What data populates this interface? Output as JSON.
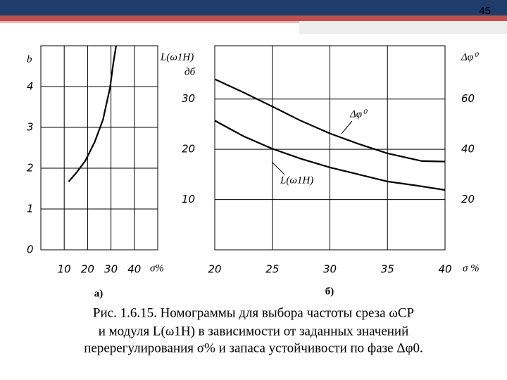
{
  "slide_number": "45",
  "chart_data": [
    {
      "type": "line",
      "panel_label": "а)",
      "y_label": "b",
      "x_label": "σ%",
      "xlim": [
        0,
        50
      ],
      "xticks": [
        10,
        20,
        30,
        40
      ],
      "ylim": [
        0,
        5
      ],
      "yticks": [
        0,
        1,
        2,
        3,
        4
      ],
      "grid": true,
      "series": [
        {
          "color": "#000000",
          "x": [
            11.9,
            15.5,
            19.1,
            23.0,
            26.6,
            29.6,
            31.0,
            32.2
          ],
          "values": [
            1.67,
            1.91,
            2.19,
            2.64,
            3.19,
            3.98,
            4.57,
            5.0
          ]
        }
      ]
    },
    {
      "type": "line",
      "panel_label": "б)",
      "y_label": "L(ω1H)",
      "y_unit": "дб",
      "y2_label": "Δφ⁰",
      "x_label": "σ %",
      "xlim": [
        20,
        40
      ],
      "xticks": [
        20,
        25,
        30,
        35,
        40
      ],
      "ylim": [
        0,
        40.6
      ],
      "yticks": [
        10,
        20,
        30
      ],
      "y2lim": [
        0,
        81.2
      ],
      "y2ticks": [
        20,
        40,
        60
      ],
      "grid": true,
      "series": [
        {
          "name": "Δφ⁰",
          "color": "#000000",
          "axis": "y2",
          "x": [
            20,
            22.5,
            25,
            27.5,
            30,
            32.5,
            35,
            38,
            40
          ],
          "values": [
            67.9,
            62.6,
            57.0,
            51.3,
            46.3,
            42.1,
            38.4,
            35.3,
            35.1
          ]
        },
        {
          "name": "L(ω1H)",
          "color": "#000000",
          "x": [
            20,
            22.5,
            25,
            27.5,
            30,
            32.5,
            35,
            37.5,
            40
          ],
          "values": [
            25.7,
            22.6,
            20.1,
            18.1,
            16.4,
            15.0,
            13.6,
            12.8,
            11.9
          ]
        }
      ]
    }
  ],
  "caption": [
    "Рис. 1.6.15. Номограммы для выбора частоты среза ωСР",
    "и модуля L(ω1H) в зависимости от заданных значений",
    "перерегулирования σ% и запаса устойчивости по фазе Δφ0."
  ]
}
